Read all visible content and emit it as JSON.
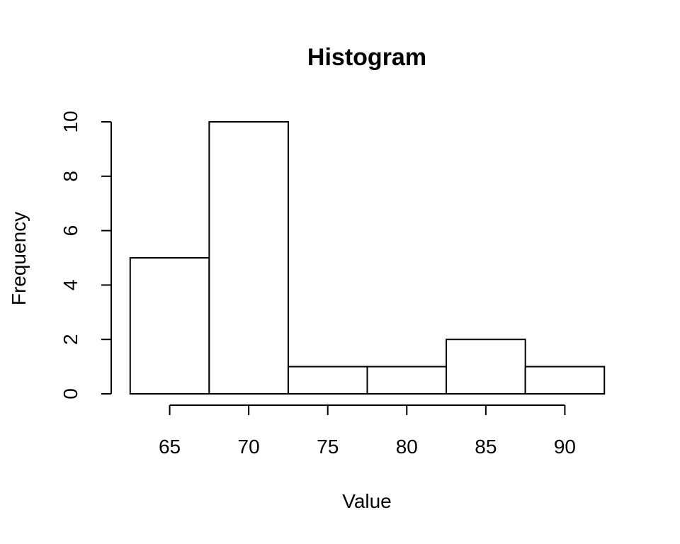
{
  "chart_data": {
    "type": "bar",
    "title": "Histogram",
    "xlabel": "Value",
    "ylabel": "Frequency",
    "bins": [
      {
        "start": 62.5,
        "end": 67.5,
        "count": 5
      },
      {
        "start": 67.5,
        "end": 72.5,
        "count": 10
      },
      {
        "start": 72.5,
        "end": 77.5,
        "count": 1
      },
      {
        "start": 77.5,
        "end": 82.5,
        "count": 1
      },
      {
        "start": 82.5,
        "end": 87.5,
        "count": 2
      },
      {
        "start": 87.5,
        "end": 92.5,
        "count": 1
      }
    ],
    "xlim": [
      61.3,
      93.7
    ],
    "ylim": [
      0,
      10
    ],
    "xticks": [
      65,
      70,
      75,
      80,
      85,
      90
    ],
    "yticks": [
      0,
      2,
      4,
      6,
      8,
      10
    ],
    "grid": false,
    "legend": "none",
    "colors": {
      "bar_fill": "#ffffff",
      "bar_stroke": "#000000",
      "axis": "#000000"
    }
  }
}
